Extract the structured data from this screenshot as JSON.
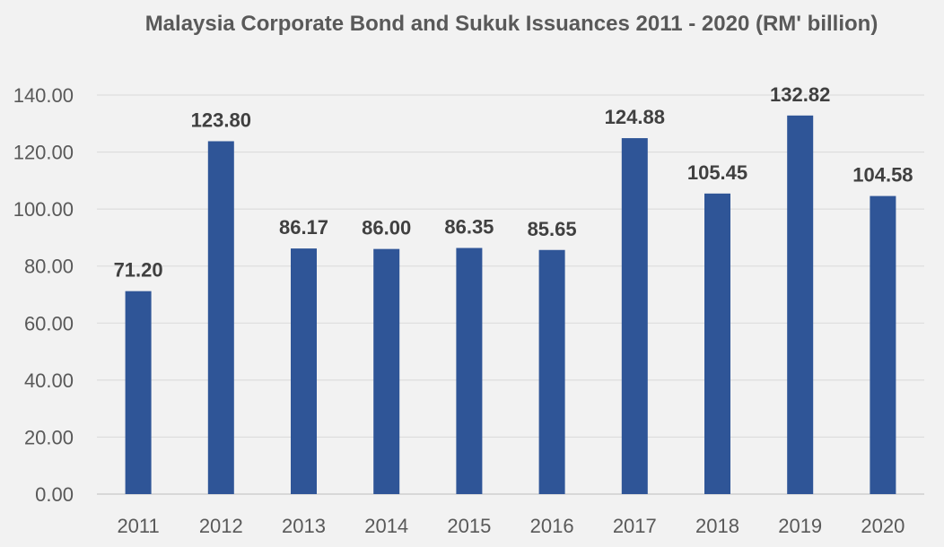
{
  "chart_data": {
    "type": "bar",
    "title": "Malaysia Corporate Bond and Sukuk Issuances 2011 - 2020 (RM' billion)",
    "categories": [
      "2011",
      "2012",
      "2013",
      "2014",
      "2015",
      "2016",
      "2017",
      "2018",
      "2019",
      "2020"
    ],
    "values": [
      71.2,
      123.8,
      86.17,
      86.0,
      86.35,
      85.65,
      124.88,
      105.45,
      132.82,
      104.58
    ],
    "value_labels": [
      "71.20",
      "123.80",
      "86.17",
      "86.00",
      "86.35",
      "85.65",
      "124.88",
      "105.45",
      "132.82",
      "104.58"
    ],
    "y_ticks": [
      "0.00",
      "20.00",
      "40.00",
      "60.00",
      "80.00",
      "100.00",
      "120.00",
      "140.00"
    ],
    "ylim": [
      0,
      140
    ],
    "grid": true,
    "bar_color": "#2f5597"
  }
}
